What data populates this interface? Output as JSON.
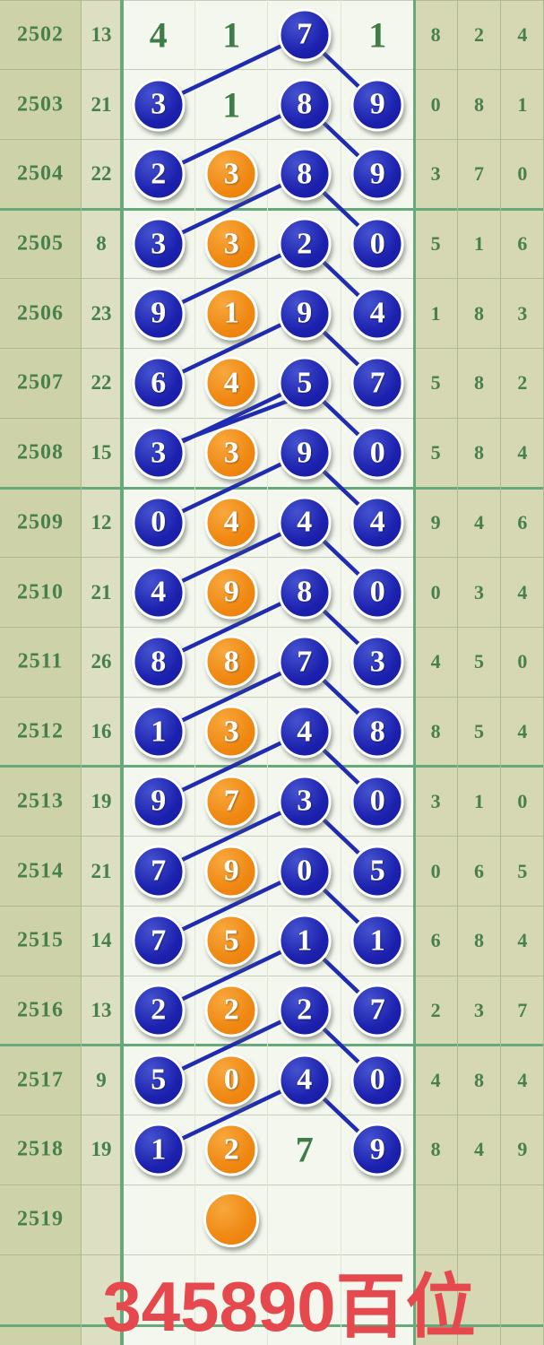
{
  "footer": {
    "label": "345890百位"
  },
  "colors": {
    "ball_blue": "#1c21ae",
    "ball_orange": "#ef8812",
    "trend_line": "#202cb0",
    "green_text": "#47804d",
    "thick_border_green": "#67a97b",
    "period_band_bg": "#ced2a9",
    "sum_band_bg": "#dcdfc1",
    "main_band_bg": "#f4f7ed",
    "right_band_bg": "#d5d8b3",
    "footer_red": "#e5484d"
  },
  "chart_data": {
    "type": "table",
    "title": "345890百位",
    "legend": "blue/orange balls = drawn digits, lines link column-3 ball to next row's column-1 and column-4 balls",
    "double_line_after_period": "2507",
    "rows": [
      {
        "period": "2502",
        "sum": "13",
        "cells": [
          {
            "v": "4",
            "style": "plain"
          },
          {
            "v": "1",
            "style": "plain"
          },
          {
            "v": "7",
            "style": "blue"
          },
          {
            "v": "1",
            "style": "plain"
          }
        ],
        "right": [
          "8",
          "2",
          "4"
        ]
      },
      {
        "period": "2503",
        "sum": "21",
        "cells": [
          {
            "v": "3",
            "style": "blue"
          },
          {
            "v": "1",
            "style": "plain"
          },
          {
            "v": "8",
            "style": "blue"
          },
          {
            "v": "9",
            "style": "blue"
          }
        ],
        "right": [
          "0",
          "8",
          "1"
        ]
      },
      {
        "period": "2504",
        "sum": "22",
        "cells": [
          {
            "v": "2",
            "style": "blue"
          },
          {
            "v": "3",
            "style": "orange"
          },
          {
            "v": "8",
            "style": "blue"
          },
          {
            "v": "9",
            "style": "blue"
          }
        ],
        "right": [
          "3",
          "7",
          "0"
        ]
      },
      {
        "period": "2505",
        "sum": "8",
        "cells": [
          {
            "v": "3",
            "style": "blue"
          },
          {
            "v": "3",
            "style": "orange"
          },
          {
            "v": "2",
            "style": "blue"
          },
          {
            "v": "0",
            "style": "blue"
          }
        ],
        "right": [
          "5",
          "1",
          "6"
        ]
      },
      {
        "period": "2506",
        "sum": "23",
        "cells": [
          {
            "v": "9",
            "style": "blue"
          },
          {
            "v": "1",
            "style": "orange"
          },
          {
            "v": "9",
            "style": "blue"
          },
          {
            "v": "4",
            "style": "blue"
          }
        ],
        "right": [
          "1",
          "8",
          "3"
        ]
      },
      {
        "period": "2507",
        "sum": "22",
        "cells": [
          {
            "v": "6",
            "style": "blue"
          },
          {
            "v": "4",
            "style": "orange"
          },
          {
            "v": "5",
            "style": "blue"
          },
          {
            "v": "7",
            "style": "blue"
          }
        ],
        "right": [
          "5",
          "8",
          "2"
        ]
      },
      {
        "period": "2508",
        "sum": "15",
        "cells": [
          {
            "v": "3",
            "style": "blue"
          },
          {
            "v": "3",
            "style": "orange"
          },
          {
            "v": "9",
            "style": "blue"
          },
          {
            "v": "0",
            "style": "blue"
          }
        ],
        "right": [
          "5",
          "8",
          "4"
        ]
      },
      {
        "period": "2509",
        "sum": "12",
        "cells": [
          {
            "v": "0",
            "style": "blue"
          },
          {
            "v": "4",
            "style": "orange"
          },
          {
            "v": "4",
            "style": "blue"
          },
          {
            "v": "4",
            "style": "blue"
          }
        ],
        "right": [
          "9",
          "4",
          "6"
        ]
      },
      {
        "period": "2510",
        "sum": "21",
        "cells": [
          {
            "v": "4",
            "style": "blue"
          },
          {
            "v": "9",
            "style": "orange"
          },
          {
            "v": "8",
            "style": "blue"
          },
          {
            "v": "0",
            "style": "blue"
          }
        ],
        "right": [
          "0",
          "3",
          "4"
        ]
      },
      {
        "period": "2511",
        "sum": "26",
        "cells": [
          {
            "v": "8",
            "style": "blue"
          },
          {
            "v": "8",
            "style": "orange"
          },
          {
            "v": "7",
            "style": "blue"
          },
          {
            "v": "3",
            "style": "blue"
          }
        ],
        "right": [
          "4",
          "5",
          "0"
        ]
      },
      {
        "period": "2512",
        "sum": "16",
        "cells": [
          {
            "v": "1",
            "style": "blue"
          },
          {
            "v": "3",
            "style": "orange"
          },
          {
            "v": "4",
            "style": "blue"
          },
          {
            "v": "8",
            "style": "blue"
          }
        ],
        "right": [
          "8",
          "5",
          "4"
        ]
      },
      {
        "period": "2513",
        "sum": "19",
        "cells": [
          {
            "v": "9",
            "style": "blue"
          },
          {
            "v": "7",
            "style": "orange"
          },
          {
            "v": "3",
            "style": "blue"
          },
          {
            "v": "0",
            "style": "blue"
          }
        ],
        "right": [
          "3",
          "1",
          "0"
        ]
      },
      {
        "period": "2514",
        "sum": "21",
        "cells": [
          {
            "v": "7",
            "style": "blue"
          },
          {
            "v": "9",
            "style": "orange"
          },
          {
            "v": "0",
            "style": "blue"
          },
          {
            "v": "5",
            "style": "blue"
          }
        ],
        "right": [
          "0",
          "6",
          "5"
        ]
      },
      {
        "period": "2515",
        "sum": "14",
        "cells": [
          {
            "v": "7",
            "style": "blue"
          },
          {
            "v": "5",
            "style": "orange"
          },
          {
            "v": "1",
            "style": "blue"
          },
          {
            "v": "1",
            "style": "blue"
          }
        ],
        "right": [
          "6",
          "8",
          "4"
        ]
      },
      {
        "period": "2516",
        "sum": "13",
        "cells": [
          {
            "v": "2",
            "style": "blue"
          },
          {
            "v": "2",
            "style": "orange"
          },
          {
            "v": "2",
            "style": "blue"
          },
          {
            "v": "7",
            "style": "blue"
          }
        ],
        "right": [
          "2",
          "3",
          "7"
        ]
      },
      {
        "period": "2517",
        "sum": "9",
        "cells": [
          {
            "v": "5",
            "style": "blue"
          },
          {
            "v": "0",
            "style": "orange"
          },
          {
            "v": "4",
            "style": "blue"
          },
          {
            "v": "0",
            "style": "blue"
          }
        ],
        "right": [
          "4",
          "8",
          "4"
        ]
      },
      {
        "period": "2518",
        "sum": "19",
        "cells": [
          {
            "v": "1",
            "style": "blue"
          },
          {
            "v": "2",
            "style": "orange"
          },
          {
            "v": "7",
            "style": "plain"
          },
          {
            "v": "9",
            "style": "blue"
          }
        ],
        "right": [
          "8",
          "4",
          "9"
        ]
      },
      {
        "period": "2519",
        "sum": "",
        "cells": [
          null,
          {
            "v": "",
            "style": "orange"
          },
          null,
          null
        ],
        "right": [
          "",
          "",
          ""
        ]
      }
    ]
  }
}
